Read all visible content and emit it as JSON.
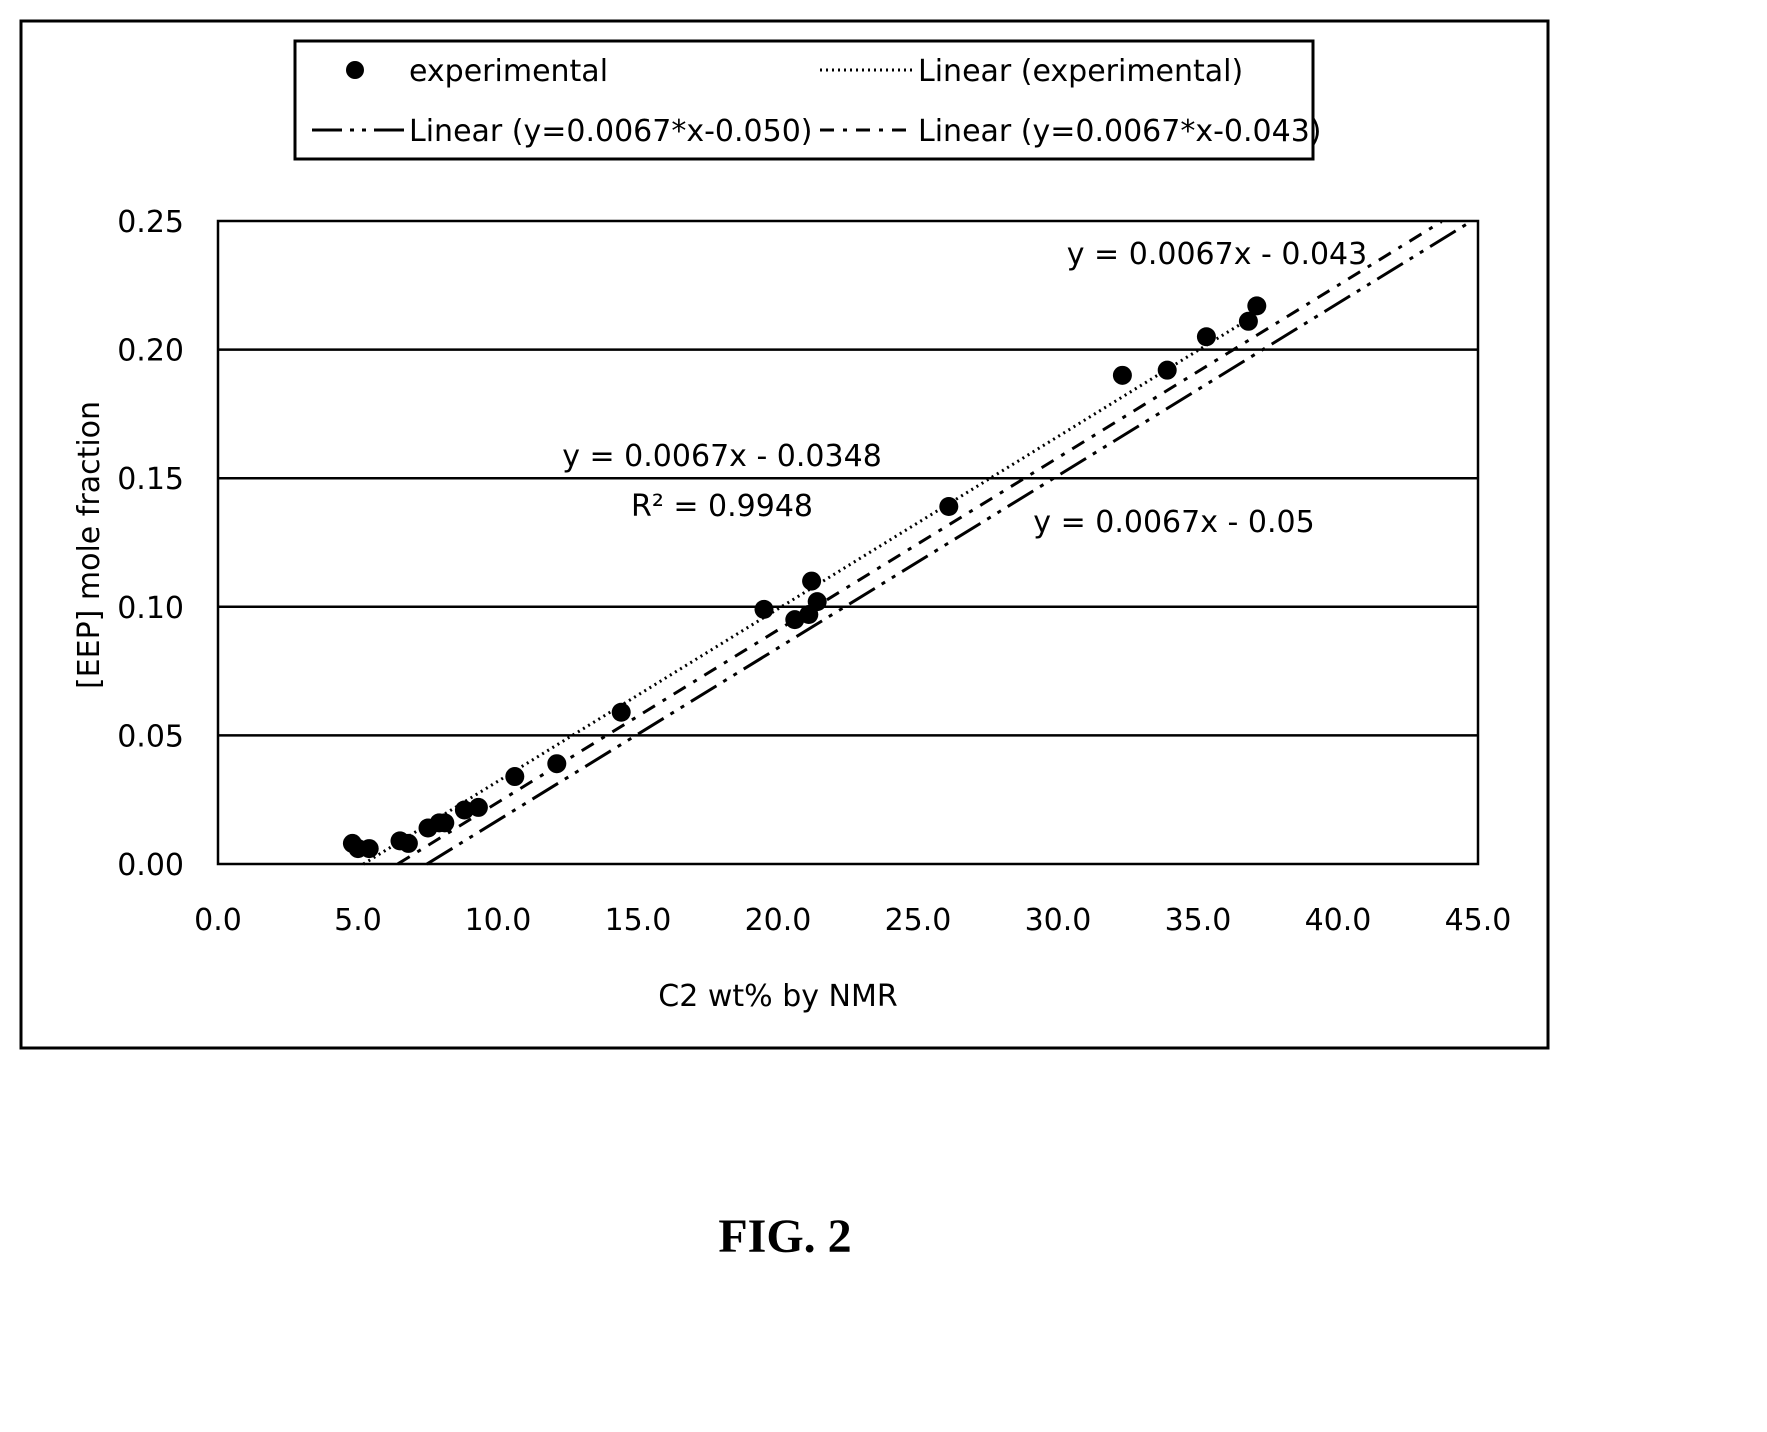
{
  "chart_data": {
    "type": "scatter",
    "xlabel": "C2 wt% by NMR",
    "ylabel": "[EEP] mole fraction",
    "xlim": [
      0,
      45
    ],
    "ylim": [
      0,
      0.25
    ],
    "x_ticks": [
      "0.0",
      "5.0",
      "10.0",
      "15.0",
      "20.0",
      "25.0",
      "30.0",
      "35.0",
      "40.0",
      "45.0"
    ],
    "y_ticks": [
      "0.00",
      "0.05",
      "0.10",
      "0.15",
      "0.20",
      "0.25"
    ],
    "grid": "horizontal",
    "legend_position": "top",
    "series": [
      {
        "name": "experimental",
        "style": "points",
        "x": [
          4.8,
          5.0,
          5.4,
          6.5,
          6.8,
          7.5,
          7.9,
          8.1,
          8.8,
          9.3,
          10.6,
          12.1,
          14.4,
          19.5,
          20.6,
          21.1,
          21.2,
          21.4,
          26.1,
          32.3,
          33.9,
          35.3,
          36.8,
          37.1
        ],
        "y": [
          0.008,
          0.006,
          0.006,
          0.009,
          0.008,
          0.014,
          0.016,
          0.016,
          0.021,
          0.022,
          0.034,
          0.039,
          0.059,
          0.099,
          0.095,
          0.097,
          0.11,
          0.102,
          0.139,
          0.19,
          0.192,
          0.205,
          0.211,
          0.217
        ]
      },
      {
        "name": "Linear (experimental)",
        "style": "dotted",
        "slope": 0.0067,
        "intercept": -0.0348,
        "x_range": [
          5.19,
          37.0
        ]
      },
      {
        "name": "Linear (y=0.0067*x-0.050)",
        "style": "long-dash-dot-dot",
        "slope": 0.0067,
        "intercept": -0.05,
        "x_range": [
          7.46,
          44.8
        ]
      },
      {
        "name": "Linear (y=0.0067*x-0.043)",
        "style": "dash-dot",
        "slope": 0.0067,
        "intercept": -0.043,
        "x_range": [
          6.42,
          43.7
        ]
      }
    ],
    "annotations": [
      {
        "id": "eq-exp",
        "text": "y = 0.0067x - 0.0348"
      },
      {
        "id": "r2-exp",
        "text": "R² = 0.9948"
      },
      {
        "id": "eq-043",
        "text": "y = 0.0067x - 0.043"
      },
      {
        "id": "eq-050",
        "text": "y = 0.0067x - 0.05"
      }
    ]
  },
  "figure_label": "FIG. 2"
}
